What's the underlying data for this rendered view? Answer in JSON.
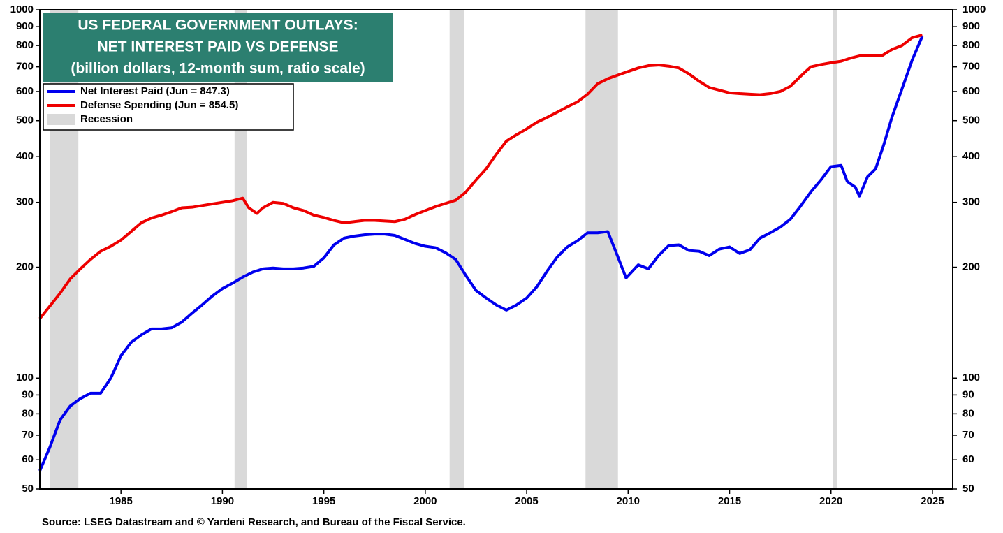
{
  "chart_data": {
    "type": "line",
    "title": [
      "US FEDERAL GOVERNMENT OUTLAYS:",
      "NET INTEREST PAID VS DEFENSE",
      "(billion dollars, 12-month sum, ratio scale)"
    ],
    "source": "Source: LSEG Datastream and © Yardeni Research, and Bureau of the Fiscal Service.",
    "log_scale": true,
    "xlim": [
      1981,
      2026
    ],
    "xticks": [
      1985,
      1990,
      1995,
      2000,
      2005,
      2010,
      2015,
      2020,
      2025
    ],
    "ylim": [
      50,
      1000
    ],
    "yticks": [
      50,
      60,
      70,
      80,
      90,
      100,
      200,
      300,
      400,
      500,
      600,
      700,
      800,
      900,
      1000
    ],
    "y2lim": [
      50,
      1000
    ],
    "y2ticks": [
      50,
      60,
      70,
      80,
      90,
      100,
      200,
      300,
      400,
      500,
      600,
      700,
      800,
      900,
      1000
    ],
    "legend": "top-left",
    "recession_label": "Recession",
    "recession_color": "#d9d9d9",
    "recessions": [
      [
        1981.5,
        1982.9
      ],
      [
        1990.6,
        1991.2
      ],
      [
        2001.2,
        2001.9
      ],
      [
        2007.9,
        2009.5
      ],
      [
        2020.1,
        2020.3
      ]
    ],
    "series": [
      {
        "name": "Net Interest Paid (Jun = 847.3)",
        "color": "#0000ee",
        "x": [
          1981.0,
          1981.5,
          1982.0,
          1982.5,
          1983.0,
          1983.5,
          1984.0,
          1984.5,
          1985.0,
          1985.5,
          1986.0,
          1986.5,
          1987.0,
          1987.5,
          1988.0,
          1988.5,
          1989.0,
          1989.5,
          1990.0,
          1990.5,
          1991.0,
          1991.5,
          1992.0,
          1992.5,
          1993.0,
          1993.5,
          1994.0,
          1994.5,
          1995.0,
          1995.5,
          1996.0,
          1996.5,
          1997.0,
          1997.5,
          1998.0,
          1998.5,
          1999.0,
          1999.5,
          2000.0,
          2000.5,
          2001.0,
          2001.5,
          2002.0,
          2002.5,
          2003.0,
          2003.5,
          2004.0,
          2004.5,
          2005.0,
          2005.5,
          2006.0,
          2006.5,
          2007.0,
          2007.5,
          2008.0,
          2008.5,
          2009.0,
          2009.5,
          2009.9,
          2010.5,
          2011.0,
          2011.5,
          2012.0,
          2012.5,
          2013.0,
          2013.5,
          2014.0,
          2014.5,
          2015.0,
          2015.5,
          2016.0,
          2016.5,
          2017.0,
          2017.5,
          2018.0,
          2018.5,
          2019.0,
          2019.5,
          2020.0,
          2020.5,
          2020.8,
          2021.2,
          2021.4,
          2021.8,
          2022.2,
          2022.6,
          2023.0,
          2023.5,
          2024.0,
          2024.5
        ],
        "values": [
          56,
          65,
          77,
          84,
          88,
          91,
          91,
          100,
          115,
          125,
          131,
          136,
          136,
          137,
          142,
          150,
          158,
          167,
          175,
          181,
          188,
          194,
          198,
          199,
          198,
          198,
          199,
          201,
          212,
          230,
          240,
          243,
          245,
          246,
          246,
          244,
          238,
          232,
          228,
          226,
          219,
          210,
          190,
          173,
          165,
          158,
          153,
          158,
          165,
          177,
          195,
          213,
          227,
          236,
          248,
          248,
          250,
          213,
          187,
          203,
          198,
          215,
          229,
          230,
          222,
          221,
          215,
          224,
          227,
          218,
          223,
          240,
          248,
          257,
          270,
          293,
          320,
          345,
          375,
          378,
          342,
          330,
          312,
          352,
          370,
          430,
          510,
          610,
          730,
          847.3
        ]
      },
      {
        "name": "Defense Spending (Jun = 854.5)",
        "color": "#ee0000",
        "x": [
          1981.0,
          1981.5,
          1982.0,
          1982.5,
          1983.0,
          1983.5,
          1984.0,
          1984.5,
          1985.0,
          1985.5,
          1986.0,
          1986.5,
          1987.0,
          1987.5,
          1988.0,
          1988.5,
          1989.0,
          1989.5,
          1990.0,
          1990.5,
          1991.0,
          1991.3,
          1991.7,
          1992.0,
          1992.5,
          1993.0,
          1993.5,
          1994.0,
          1994.5,
          1995.0,
          1995.5,
          1996.0,
          1996.5,
          1997.0,
          1997.5,
          1998.0,
          1998.5,
          1999.0,
          1999.5,
          2000.0,
          2000.5,
          2001.0,
          2001.5,
          2002.0,
          2002.5,
          2003.0,
          2003.5,
          2004.0,
          2004.5,
          2005.0,
          2005.5,
          2006.0,
          2006.5,
          2007.0,
          2007.5,
          2008.0,
          2008.5,
          2009.0,
          2009.5,
          2010.0,
          2010.5,
          2011.0,
          2011.5,
          2012.0,
          2012.5,
          2013.0,
          2013.5,
          2014.0,
          2014.5,
          2015.0,
          2015.5,
          2016.0,
          2016.5,
          2017.0,
          2017.5,
          2018.0,
          2018.5,
          2019.0,
          2019.5,
          2020.0,
          2020.5,
          2021.0,
          2021.5,
          2022.0,
          2022.5,
          2023.0,
          2023.5,
          2024.0,
          2024.5
        ],
        "values": [
          145,
          157,
          170,
          186,
          198,
          210,
          221,
          228,
          237,
          250,
          264,
          272,
          277,
          283,
          290,
          291,
          294,
          297,
          300,
          303,
          308,
          290,
          280,
          290,
          300,
          298,
          290,
          285,
          277,
          273,
          268,
          264,
          266,
          268,
          268,
          267,
          266,
          270,
          278,
          285,
          292,
          298,
          304,
          320,
          345,
          370,
          405,
          440,
          458,
          475,
          495,
          510,
          527,
          545,
          562,
          590,
          630,
          650,
          665,
          680,
          695,
          705,
          708,
          703,
          695,
          670,
          640,
          615,
          605,
          595,
          592,
          590,
          588,
          592,
          600,
          620,
          660,
          700,
          710,
          718,
          725,
          740,
          752,
          752,
          750,
          780,
          800,
          840,
          854.5
        ]
      }
    ]
  }
}
